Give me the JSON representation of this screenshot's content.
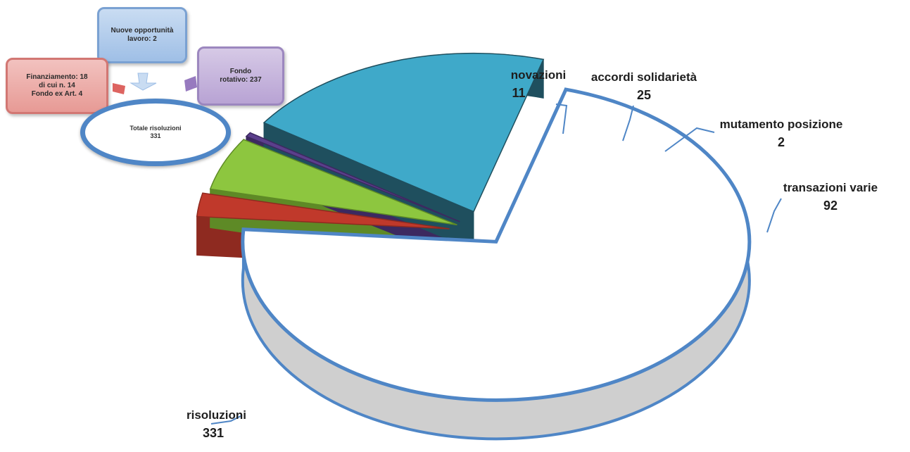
{
  "diagram": {
    "top_box": {
      "line1": "Nuove opportunità",
      "line2": "lavoro: 2"
    },
    "left_box": {
      "line1": "Finanziamento: 18",
      "line2": "di cui n. 14",
      "line3": "Fondo ex Art. 4"
    },
    "right_box": {
      "line1": "Fondo",
      "line2": "rotativo: 237"
    },
    "center_ellipse": {
      "line1": "Totale risoluzioni",
      "line2": "331"
    },
    "colors": {
      "blue": "#9fbfe6",
      "red": "#e79a95",
      "purple": "#b8a3d4",
      "ring": "#4f86c6"
    }
  },
  "chart_data": {
    "type": "pie",
    "style": "3d-exploded",
    "slices": [
      {
        "label": "risoluzioni",
        "value": 331,
        "color": "#ffffff",
        "edge": "#4f86c6"
      },
      {
        "label": "novazioni",
        "value": 11,
        "color": "#c0392b",
        "edge": "#8e2a20"
      },
      {
        "label": "accordi solidarietà",
        "value": 25,
        "color": "#8dc63f",
        "edge": "#5e8a26"
      },
      {
        "label": "mutamento posizione",
        "value": 2,
        "color": "#5b3f8c",
        "edge": "#3c2960"
      },
      {
        "label": "transazioni varie",
        "value": 92,
        "color": "#3fa9c9",
        "edge": "#1f4f5e"
      }
    ]
  }
}
